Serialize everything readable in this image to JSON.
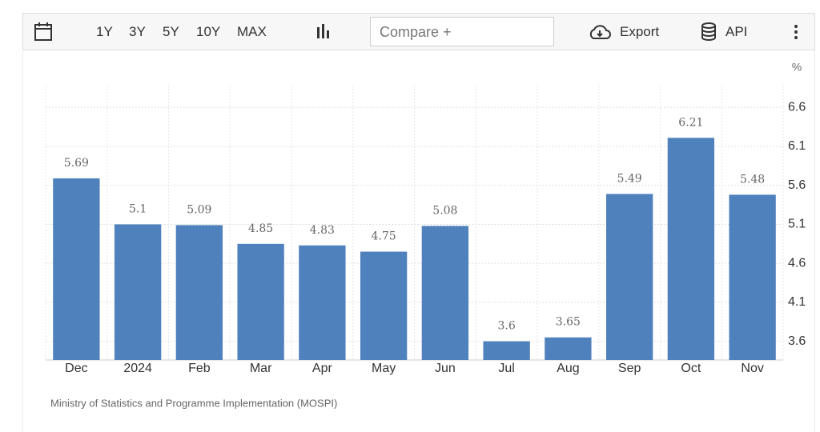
{
  "toolbar": {
    "ranges": [
      "1Y",
      "3Y",
      "5Y",
      "10Y",
      "MAX"
    ],
    "compare": "Compare +",
    "export": "Export",
    "api": "API"
  },
  "chart_data": {
    "type": "bar",
    "y_unit": "%",
    "categories": [
      "Dec",
      "2024",
      "Feb",
      "Mar",
      "Apr",
      "May",
      "Jun",
      "Jul",
      "Aug",
      "Sep",
      "Oct",
      "Nov"
    ],
    "values": [
      5.69,
      5.1,
      5.09,
      4.85,
      4.83,
      4.75,
      5.08,
      3.6,
      3.65,
      5.49,
      6.21,
      5.48
    ],
    "color": "#4f81bd",
    "ylim": [
      3.36,
      6.88
    ],
    "yticks": [
      3.6,
      4.1,
      4.6,
      5.1,
      5.6,
      6.1,
      6.6
    ],
    "grid": true,
    "source": "Ministry of Statistics and Programme Implementation (MOSPI)"
  }
}
